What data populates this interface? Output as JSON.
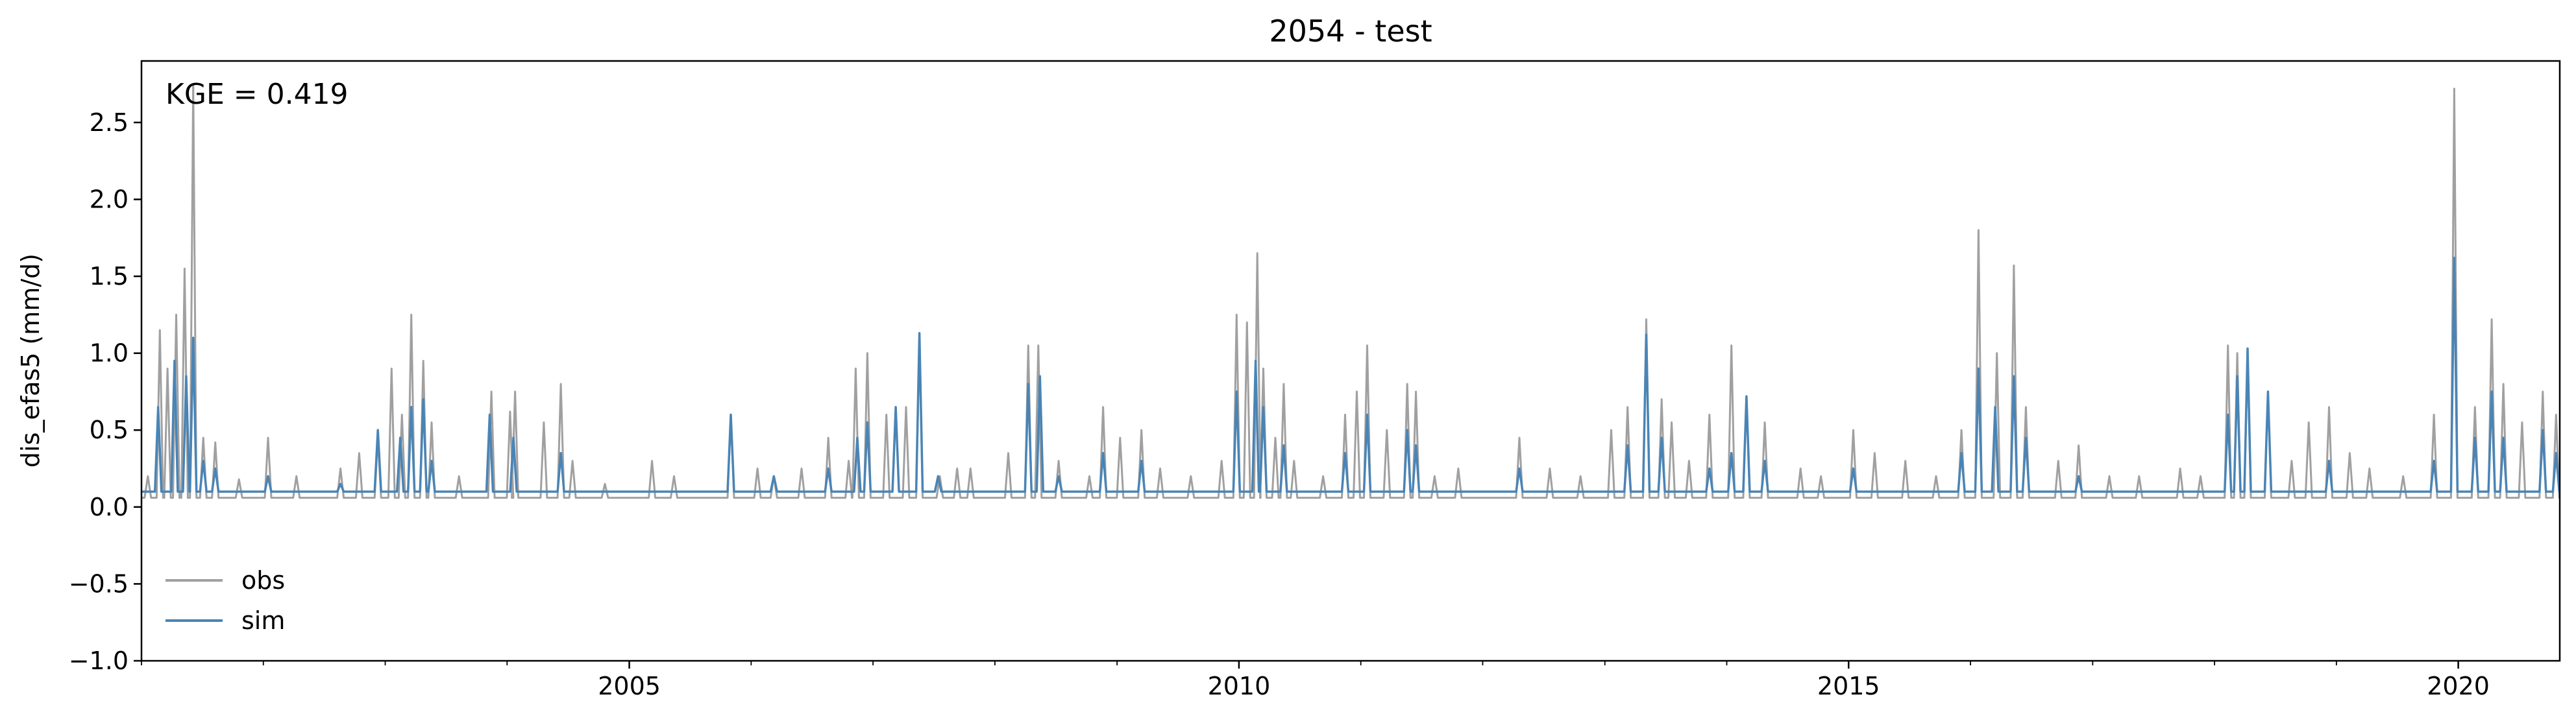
{
  "chart_data": {
    "type": "line",
    "title": "2054 - test",
    "xlabel": "",
    "ylabel": "dis_efas5 (mm/d)",
    "xlim": [
      "2001-01-01",
      "2020-10-31"
    ],
    "ylim": [
      -1.0,
      2.9
    ],
    "x_ticks": [
      "2005",
      "2010",
      "2015",
      "2020"
    ],
    "y_ticks": [
      "−1.0",
      "−0.5",
      "0.0",
      "0.5",
      "1.0",
      "1.5",
      "2.0",
      "2.5"
    ],
    "grid": false,
    "legend": {
      "placement": "lower-left",
      "entries": [
        "obs",
        "sim"
      ]
    },
    "annotation": "KGE = 0.419",
    "baselines": {
      "obs": 0.06,
      "sim": 0.1
    },
    "series": [
      {
        "name": "obs",
        "color": "#a0a0a0",
        "peaks": [
          [
            "2001-01-20",
            0.2
          ],
          [
            "2001-02-25",
            1.15
          ],
          [
            "2001-03-20",
            0.9
          ],
          [
            "2001-04-15",
            1.25
          ],
          [
            "2001-05-10",
            1.55
          ],
          [
            "2001-06-05",
            2.75
          ],
          [
            "2001-07-05",
            0.45
          ],
          [
            "2001-08-10",
            0.42
          ],
          [
            "2001-10-20",
            0.18
          ],
          [
            "2002-01-15",
            0.45
          ],
          [
            "2002-04-10",
            0.2
          ],
          [
            "2002-08-20",
            0.25
          ],
          [
            "2002-10-15",
            0.35
          ],
          [
            "2002-12-10",
            0.45
          ],
          [
            "2003-01-20",
            0.9
          ],
          [
            "2003-02-20",
            0.6
          ],
          [
            "2003-03-20",
            1.25
          ],
          [
            "2003-04-25",
            0.95
          ],
          [
            "2003-05-20",
            0.55
          ],
          [
            "2003-08-10",
            0.2
          ],
          [
            "2003-11-15",
            0.75
          ],
          [
            "2004-01-10",
            0.62
          ],
          [
            "2004-01-25",
            0.75
          ],
          [
            "2004-04-20",
            0.55
          ],
          [
            "2004-06-10",
            0.8
          ],
          [
            "2004-07-15",
            0.3
          ],
          [
            "2004-10-20",
            0.15
          ],
          [
            "2005-03-10",
            0.3
          ],
          [
            "2005-05-15",
            0.2
          ],
          [
            "2005-11-01",
            0.6
          ],
          [
            "2006-01-20",
            0.25
          ],
          [
            "2006-03-10",
            0.2
          ],
          [
            "2006-06-01",
            0.25
          ],
          [
            "2006-08-20",
            0.45
          ],
          [
            "2006-10-20",
            0.3
          ],
          [
            "2006-11-10",
            0.9
          ],
          [
            "2006-12-15",
            1.0
          ],
          [
            "2007-02-10",
            0.6
          ],
          [
            "2007-04-10",
            0.65
          ],
          [
            "2007-05-20",
            1.1
          ],
          [
            "2007-07-20",
            0.2
          ],
          [
            "2007-09-10",
            0.25
          ],
          [
            "2007-10-20",
            0.25
          ],
          [
            "2008-02-10",
            0.35
          ],
          [
            "2008-04-10",
            1.05
          ],
          [
            "2008-05-10",
            1.05
          ],
          [
            "2008-07-10",
            0.3
          ],
          [
            "2008-10-10",
            0.2
          ],
          [
            "2008-11-20",
            0.65
          ],
          [
            "2009-01-10",
            0.45
          ],
          [
            "2009-03-15",
            0.5
          ],
          [
            "2009-05-10",
            0.25
          ],
          [
            "2009-08-10",
            0.2
          ],
          [
            "2009-11-10",
            0.3
          ],
          [
            "2009-12-25",
            1.25
          ],
          [
            "2010-01-25",
            1.2
          ],
          [
            "2010-02-25",
            1.65
          ],
          [
            "2010-03-15",
            0.9
          ],
          [
            "2010-04-20",
            0.45
          ],
          [
            "2010-05-15",
            0.8
          ],
          [
            "2010-06-15",
            0.3
          ],
          [
            "2010-09-10",
            0.2
          ],
          [
            "2010-11-15",
            0.6
          ],
          [
            "2010-12-20",
            0.75
          ],
          [
            "2011-01-20",
            1.05
          ],
          [
            "2011-03-20",
            0.5
          ],
          [
            "2011-05-20",
            0.8
          ],
          [
            "2011-06-15",
            0.75
          ],
          [
            "2011-08-10",
            0.2
          ],
          [
            "2011-10-20",
            0.25
          ],
          [
            "2012-04-20",
            0.45
          ],
          [
            "2012-07-20",
            0.25
          ],
          [
            "2012-10-20",
            0.2
          ],
          [
            "2013-01-20",
            0.5
          ],
          [
            "2013-03-10",
            0.65
          ],
          [
            "2013-05-05",
            1.22
          ],
          [
            "2013-06-20",
            0.7
          ],
          [
            "2013-07-20",
            0.55
          ],
          [
            "2013-09-10",
            0.3
          ],
          [
            "2013-11-10",
            0.6
          ],
          [
            "2014-01-15",
            1.05
          ],
          [
            "2014-03-01",
            0.72
          ],
          [
            "2014-04-25",
            0.55
          ],
          [
            "2014-08-10",
            0.25
          ],
          [
            "2014-10-10",
            0.2
          ],
          [
            "2015-01-15",
            0.5
          ],
          [
            "2015-03-20",
            0.35
          ],
          [
            "2015-06-20",
            0.3
          ],
          [
            "2015-09-20",
            0.2
          ],
          [
            "2015-12-05",
            0.5
          ],
          [
            "2016-01-25",
            1.8
          ],
          [
            "2016-03-20",
            1.0
          ],
          [
            "2016-05-10",
            1.57
          ],
          [
            "2016-06-15",
            0.65
          ],
          [
            "2016-09-20",
            0.3
          ],
          [
            "2016-11-20",
            0.4
          ],
          [
            "2017-02-20",
            0.2
          ],
          [
            "2017-05-20",
            0.2
          ],
          [
            "2017-09-20",
            0.25
          ],
          [
            "2017-11-20",
            0.2
          ],
          [
            "2018-02-10",
            1.05
          ],
          [
            "2018-03-10",
            1.0
          ],
          [
            "2018-04-10",
            1.0
          ],
          [
            "2018-06-10",
            0.75
          ],
          [
            "2018-08-20",
            0.3
          ],
          [
            "2018-10-10",
            0.55
          ],
          [
            "2018-12-10",
            0.65
          ],
          [
            "2019-02-10",
            0.35
          ],
          [
            "2019-04-10",
            0.25
          ],
          [
            "2019-07-20",
            0.2
          ],
          [
            "2019-10-20",
            0.6
          ],
          [
            "2019-12-20",
            2.72
          ],
          [
            "2020-02-20",
            0.65
          ],
          [
            "2020-04-10",
            1.22
          ],
          [
            "2020-05-15",
            0.8
          ],
          [
            "2020-07-10",
            0.55
          ],
          [
            "2020-09-10",
            0.75
          ],
          [
            "2020-10-20",
            0.6
          ]
        ]
      },
      {
        "name": "sim",
        "color": "#4a84b5",
        "peaks": [
          [
            "2001-02-20",
            0.65
          ],
          [
            "2001-04-10",
            0.95
          ],
          [
            "2001-05-15",
            0.85
          ],
          [
            "2001-06-05",
            1.1
          ],
          [
            "2001-07-05",
            0.3
          ],
          [
            "2001-08-10",
            0.25
          ],
          [
            "2002-01-15",
            0.2
          ],
          [
            "2002-08-20",
            0.15
          ],
          [
            "2002-12-10",
            0.5
          ],
          [
            "2003-02-15",
            0.45
          ],
          [
            "2003-03-20",
            0.65
          ],
          [
            "2003-04-25",
            0.7
          ],
          [
            "2003-05-20",
            0.3
          ],
          [
            "2003-11-10",
            0.6
          ],
          [
            "2004-01-20",
            0.45
          ],
          [
            "2004-06-10",
            0.35
          ],
          [
            "2005-11-01",
            0.6
          ],
          [
            "2006-03-10",
            0.2
          ],
          [
            "2006-08-20",
            0.25
          ],
          [
            "2006-11-15",
            0.45
          ],
          [
            "2006-12-15",
            0.55
          ],
          [
            "2007-03-10",
            0.65
          ],
          [
            "2007-05-20",
            1.13
          ],
          [
            "2007-07-15",
            0.2
          ],
          [
            "2008-04-10",
            0.8
          ],
          [
            "2008-05-15",
            0.85
          ],
          [
            "2008-07-10",
            0.2
          ],
          [
            "2008-11-20",
            0.35
          ],
          [
            "2009-03-15",
            0.3
          ],
          [
            "2009-12-25",
            0.75
          ],
          [
            "2010-02-20",
            0.95
          ],
          [
            "2010-03-15",
            0.65
          ],
          [
            "2010-05-15",
            0.4
          ],
          [
            "2010-11-15",
            0.35
          ],
          [
            "2011-01-20",
            0.6
          ],
          [
            "2011-05-20",
            0.5
          ],
          [
            "2011-06-15",
            0.4
          ],
          [
            "2012-04-20",
            0.25
          ],
          [
            "2013-03-10",
            0.4
          ],
          [
            "2013-05-05",
            1.12
          ],
          [
            "2013-06-20",
            0.45
          ],
          [
            "2013-11-10",
            0.25
          ],
          [
            "2014-01-15",
            0.35
          ],
          [
            "2014-03-01",
            0.72
          ],
          [
            "2014-04-25",
            0.3
          ],
          [
            "2015-01-15",
            0.25
          ],
          [
            "2015-12-05",
            0.35
          ],
          [
            "2016-01-25",
            0.9
          ],
          [
            "2016-03-15",
            0.65
          ],
          [
            "2016-05-10",
            0.85
          ],
          [
            "2016-06-15",
            0.45
          ],
          [
            "2016-11-20",
            0.2
          ],
          [
            "2018-02-10",
            0.6
          ],
          [
            "2018-03-10",
            0.85
          ],
          [
            "2018-04-10",
            1.03
          ],
          [
            "2018-06-10",
            0.75
          ],
          [
            "2018-12-10",
            0.3
          ],
          [
            "2019-10-20",
            0.3
          ],
          [
            "2019-12-20",
            1.62
          ],
          [
            "2020-02-20",
            0.45
          ],
          [
            "2020-04-10",
            0.75
          ],
          [
            "2020-05-15",
            0.45
          ],
          [
            "2020-09-10",
            0.5
          ],
          [
            "2020-10-20",
            0.35
          ]
        ]
      }
    ]
  }
}
